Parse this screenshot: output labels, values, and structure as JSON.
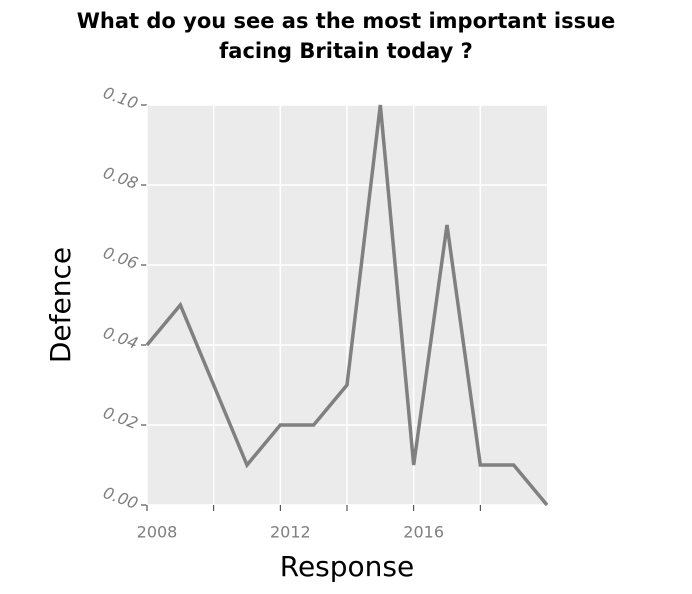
{
  "chart_data": {
    "type": "line",
    "title": [
      "What do you see as the most important issue",
      "facing Britain today ?"
    ],
    "x_label": "Response",
    "y_label": "Defence",
    "x": [
      2008,
      2009,
      2010,
      2011,
      2012,
      2013,
      2014,
      2015,
      2016,
      2017,
      2018,
      2019,
      2020
    ],
    "series": [
      {
        "name": "Defence",
        "color": "#808080",
        "values": [
          0.04,
          0.05,
          0.03,
          0.01,
          0.02,
          0.02,
          0.03,
          0.1,
          0.01,
          0.07,
          0.01,
          0.01,
          0.0
        ]
      }
    ],
    "xlim": [
      2008,
      2020
    ],
    "xticks": [
      2008,
      2012,
      2016
    ],
    "x_minor_ticks": [
      2010,
      2014,
      2018
    ],
    "ylim": [
      0,
      0.1
    ],
    "yticks": [
      {
        "value": 0,
        "label": "0.00"
      },
      {
        "value": 0.02,
        "label": "0.02"
      },
      {
        "value": 0.04,
        "label": "0.04"
      },
      {
        "value": 0.06,
        "label": "0.06"
      },
      {
        "value": 0.08,
        "label": "0.08"
      },
      {
        "value": 0.1,
        "label": "0.10"
      }
    ],
    "grid": true
  }
}
